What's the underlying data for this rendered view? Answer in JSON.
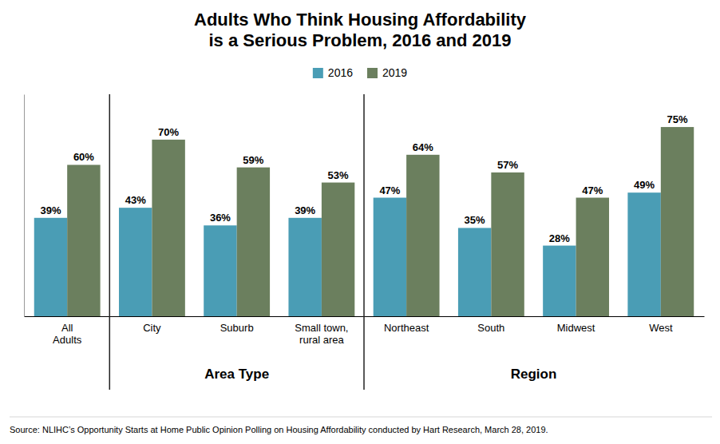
{
  "chart_data": {
    "type": "bar",
    "title": "Adults Who Think Housing Affordability\nis a Serious Problem, 2016 and 2019",
    "categories": [
      "All\nAdults",
      "City",
      "Suburb",
      "Small town,\nrural area",
      "Northeast",
      "South",
      "Midwest",
      "West"
    ],
    "series": [
      {
        "name": "2016",
        "color": "#4a9db5",
        "values": [
          39,
          43,
          36,
          39,
          47,
          35,
          28,
          49
        ],
        "value_labels": [
          "39%",
          "43%",
          "36%",
          "39%",
          "47%",
          "35%",
          "28%",
          "49%"
        ]
      },
      {
        "name": "2019",
        "color": "#6b7f5e",
        "values": [
          60,
          70,
          59,
          53,
          64,
          57,
          47,
          75
        ],
        "value_labels": [
          "60%",
          "70%",
          "59%",
          "53%",
          "64%",
          "57%",
          "47%",
          "75%"
        ]
      }
    ],
    "ylim": [
      0,
      88
    ],
    "tick_labels": "x",
    "grid": false,
    "legend": "top",
    "data_labels": true,
    "annotations": [
      "Area Type",
      "Region"
    ],
    "source": "Source: NLIHC’s Opportunity Starts at Home Public Opinion Polling on Housing Affordability conducted by Hart Research, March 28, 2019."
  }
}
